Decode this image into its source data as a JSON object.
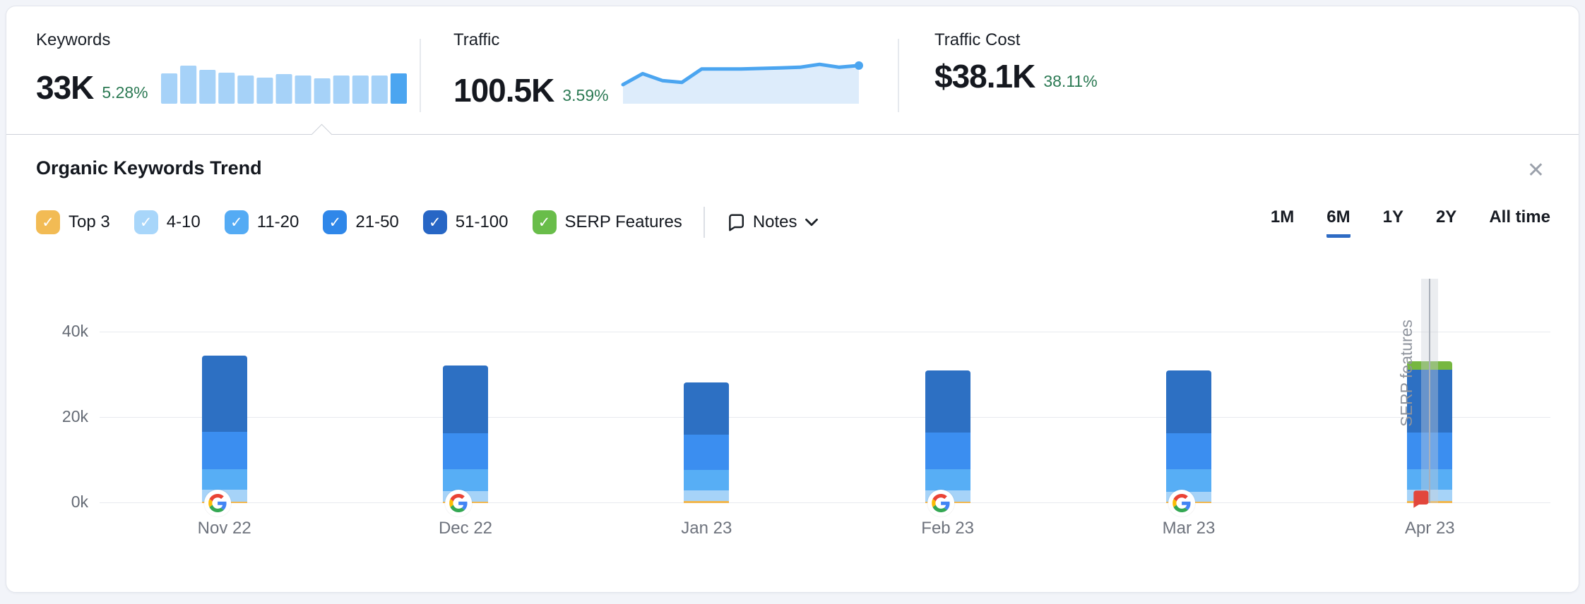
{
  "metrics": {
    "keywords": {
      "label": "Keywords",
      "value": "33K",
      "change": "5.28%"
    },
    "traffic": {
      "label": "Traffic",
      "value": "100.5K",
      "change": "3.59%"
    },
    "traffic_cost": {
      "label": "Traffic Cost",
      "value": "$38.1K",
      "change": "38.11%"
    }
  },
  "sparklines": {
    "keywords_bars": [
      0.67,
      0.85,
      0.75,
      0.68,
      0.62,
      0.58,
      0.66,
      0.62,
      0.57,
      0.63,
      0.62,
      0.62,
      0.67
    ],
    "keywords_bar_color": "#a6d2f8",
    "keywords_last_bar_color": "#4ba5f0",
    "traffic_line": [
      0.33,
      0.52,
      0.4,
      0.37,
      0.6,
      0.6,
      0.6,
      0.61,
      0.62,
      0.63,
      0.68,
      0.63,
      0.66
    ],
    "traffic_line_color": "#4ba5f0",
    "traffic_area_color": "#ddecfb"
  },
  "panel": {
    "title": "Organic Keywords Trend",
    "close_glyph": "✕",
    "legend": [
      {
        "label": "Top 3",
        "color": "#f2bb54",
        "checked": true
      },
      {
        "label": "4-10",
        "color": "#a8d6fa",
        "checked": true
      },
      {
        "label": "11-20",
        "color": "#54abf4",
        "checked": true
      },
      {
        "label": "21-50",
        "color": "#2f87e9",
        "checked": true
      },
      {
        "label": "51-100",
        "color": "#2766c5",
        "checked": true
      },
      {
        "label": "SERP Features",
        "color": "#69bd4a",
        "checked": true
      }
    ],
    "check_glyph": "✓",
    "notes_label": "Notes",
    "ranges": [
      {
        "label": "1M",
        "active": false
      },
      {
        "label": "6M",
        "active": true
      },
      {
        "label": "1Y",
        "active": false
      },
      {
        "label": "2Y",
        "active": false
      },
      {
        "label": "All time",
        "active": false
      }
    ],
    "active_range_color": "#2e6bc4"
  },
  "chart_data": {
    "type": "bar",
    "stacked": true,
    "categories": [
      "Nov 22",
      "Dec 22",
      "Jan 23",
      "Feb 23",
      "Mar 23",
      "Apr 23"
    ],
    "series": [
      {
        "name": "Top 3",
        "color": "#f2b64d",
        "values": [
          400,
          400,
          500,
          400,
          400,
          500
        ]
      },
      {
        "name": "4-10",
        "color": "#a6d3f8",
        "values": [
          2800,
          2500,
          2500,
          2600,
          2300,
          2700
        ]
      },
      {
        "name": "11-20",
        "color": "#57aef5",
        "values": [
          4800,
          5000,
          4800,
          4900,
          5200,
          4800
        ]
      },
      {
        "name": "21-50",
        "color": "#3b8ef0",
        "values": [
          8800,
          8500,
          8200,
          8600,
          8500,
          8500
        ]
      },
      {
        "name": "51-100",
        "color": "#2d70c3",
        "values": [
          17700,
          15800,
          12300,
          14600,
          14700,
          14700
        ]
      },
      {
        "name": "SERP Features",
        "color": "#76b740",
        "values": [
          0,
          0,
          0,
          0,
          0,
          2000
        ]
      }
    ],
    "totals": [
      34500,
      32200,
      28300,
      31100,
      31100,
      33200
    ],
    "y_ticks": [
      "0k",
      "20k",
      "40k"
    ],
    "y_tick_values": [
      0,
      20000,
      40000
    ],
    "ylim": [
      0,
      52000
    ],
    "grid": true,
    "google_icon_on": [
      "Nov 22",
      "Dec 22",
      "Feb 23",
      "Mar 23"
    ],
    "note_marker_on": "Apr 23",
    "highlight": {
      "category": "Apr 23",
      "label": "SERP features"
    }
  }
}
